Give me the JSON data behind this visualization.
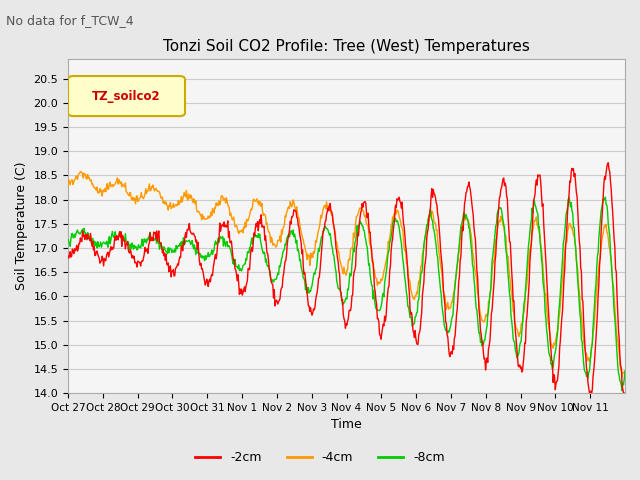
{
  "title": "Tonzi Soil CO2 Profile: Tree (West) Temperatures",
  "subtitle": "No data for f_TCW_4",
  "ylabel": "Soil Temperature (C)",
  "xlabel": "Time",
  "ylim": [
    14.0,
    20.9
  ],
  "yticks": [
    14.0,
    14.5,
    15.0,
    15.5,
    16.0,
    16.5,
    17.0,
    17.5,
    18.0,
    18.5,
    19.0,
    19.5,
    20.0,
    20.5
  ],
  "x_labels": [
    "Oct 27",
    "Oct 28",
    "Oct 29",
    "Oct 30",
    "Oct 31",
    "Nov 1",
    "Nov 2",
    "Nov 3",
    "Nov 4",
    "Nov 5",
    "Nov 6",
    "Nov 7",
    "Nov 8",
    "Nov 9",
    "Nov 10",
    "Nov 11"
  ],
  "colors": {
    "neg2cm": "#ff0000",
    "neg4cm": "#ff9900",
    "neg8cm": "#00cc00"
  },
  "legend_label": "TZ_soilco2",
  "bg_color": "#e8e8e8",
  "plot_bg": "#f5f5f5",
  "grid_color": "#cccccc"
}
